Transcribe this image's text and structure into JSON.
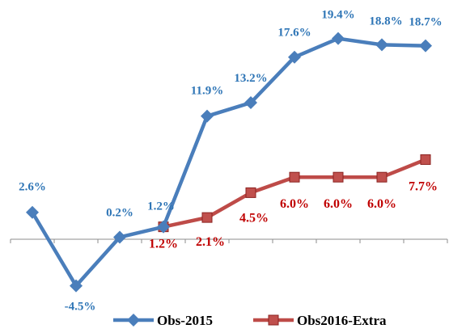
{
  "chart_data": {
    "type": "line",
    "title": "",
    "xlabel": "",
    "ylabel": "",
    "categories": [
      "",
      "",
      "",
      "",
      "",
      "",
      "",
      "",
      "",
      ""
    ],
    "ylim": [
      -6,
      22
    ],
    "grid": false,
    "legend": "bottom",
    "series": [
      {
        "name": "Obs-2015",
        "color": "#4A7EBB",
        "marker": "diamond",
        "values": [
          2.6,
          -4.5,
          0.2,
          1.2,
          11.9,
          13.2,
          17.6,
          19.4,
          18.8,
          18.7
        ],
        "labels": [
          "2.6%",
          "-4.5%",
          "0.2%",
          "1.2%",
          "11.9%",
          "13.2%",
          "17.6%",
          "19.4%",
          "18.8%",
          "18.7%"
        ]
      },
      {
        "name": "Obs2016-Extra",
        "color": "#BE4B48",
        "marker": "square",
        "values": [
          null,
          null,
          null,
          1.2,
          2.1,
          4.5,
          6.0,
          6.0,
          6.0,
          7.7
        ],
        "labels": [
          null,
          null,
          null,
          "1.2%",
          "2.1%",
          "4.5%",
          "6.0%",
          "6.0%",
          "6.0%",
          "7.7%"
        ]
      }
    ]
  }
}
